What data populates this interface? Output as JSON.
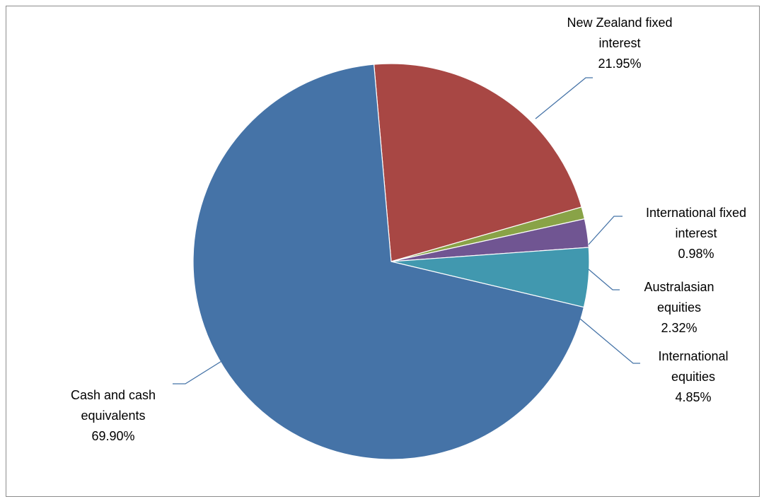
{
  "chart_data": {
    "type": "pie",
    "title": "",
    "legend": "none",
    "slices": [
      {
        "name": "New Zealand fixed interest",
        "label_lines": [
          "New Zealand fixed",
          "interest"
        ],
        "value": 21.95,
        "value_label": "21.95%",
        "color": "#A84744"
      },
      {
        "name": "International fixed interest",
        "label_lines": [
          "International fixed",
          "interest"
        ],
        "value": 0.98,
        "value_label": "0.98%",
        "color": "#89A347"
      },
      {
        "name": "Australasian equities",
        "label_lines": [
          "Australasian",
          "equities"
        ],
        "value": 2.32,
        "value_label": "2.32%",
        "color": "#705592"
      },
      {
        "name": "International equities",
        "label_lines": [
          "International",
          "equities"
        ],
        "value": 4.85,
        "value_label": "4.85%",
        "color": "#4198AF"
      },
      {
        "name": "Cash and cash equivalents",
        "label_lines": [
          "Cash and cash",
          "equivalents"
        ],
        "value": 69.9,
        "value_label": "69.90%",
        "color": "#4573A7"
      }
    ]
  }
}
